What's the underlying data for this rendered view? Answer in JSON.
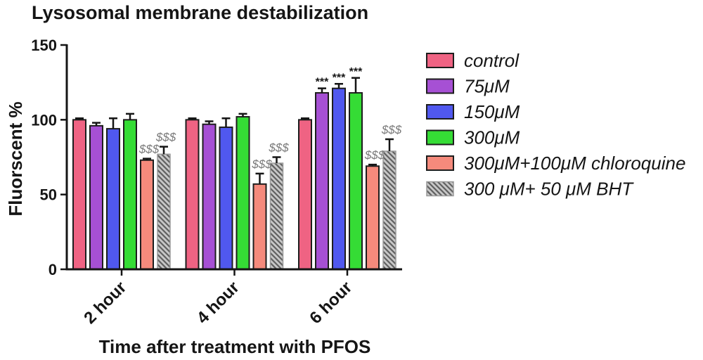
{
  "chart_data": {
    "type": "bar",
    "title": "Lysosomal membrane destabilization",
    "xlabel": "Time after treatment with PFOS",
    "ylabel": "Fluorscent %",
    "categories": [
      "2 hour",
      "4 hour",
      "6 hour"
    ],
    "ylim": [
      0,
      150
    ],
    "yticks": [
      0,
      50,
      100,
      150
    ],
    "grid": false,
    "legend_position": "right",
    "series": [
      {
        "name": "control",
        "color": "#ef6383",
        "values": [
          100,
          100,
          100
        ],
        "errors": [
          1,
          1,
          1
        ]
      },
      {
        "name": "75μM",
        "color": "#a650d4",
        "values": [
          96,
          97,
          118
        ],
        "errors": [
          2,
          2,
          3
        ],
        "annotations": [
          "",
          "",
          "***"
        ]
      },
      {
        "name": "150μM",
        "color": "#5058ef",
        "values": [
          94,
          95,
          121
        ],
        "errors": [
          7,
          6,
          3
        ],
        "annotations": [
          "",
          "",
          "***"
        ]
      },
      {
        "name": "300μM",
        "color": "#35dc35",
        "values": [
          100,
          102,
          118
        ],
        "errors": [
          4,
          2,
          10
        ],
        "annotations": [
          "",
          "",
          "***"
        ]
      },
      {
        "name": "300μM+100μM chloroquine",
        "color": "#f58a7c",
        "values": [
          73,
          57,
          69
        ],
        "errors": [
          1,
          7,
          1
        ],
        "annotations": [
          "$$$",
          "$$$",
          "$$$"
        ]
      },
      {
        "name": "300 μM+ 50 μM BHT",
        "color": "#c9c9c9",
        "pattern": "diagonal-hatch",
        "hatch_color": "#5f5f5f",
        "values": [
          77,
          71,
          79
        ],
        "errors": [
          5,
          4,
          8
        ],
        "annotations": [
          "$$$",
          "$$$",
          "$$$"
        ]
      }
    ]
  }
}
